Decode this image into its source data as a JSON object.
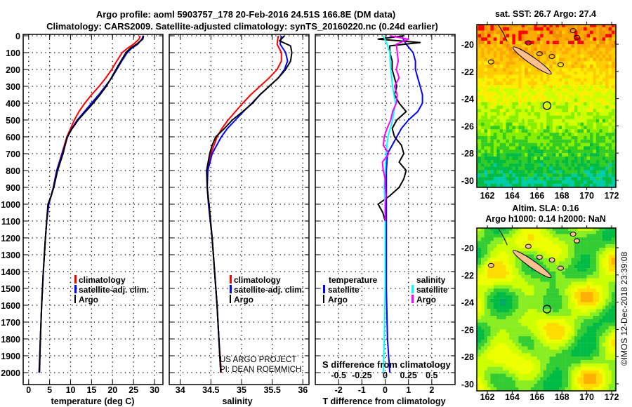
{
  "title": {
    "line1": "Argo profile: aoml 5903757_178 20-Feb-2016 24.51S 166.8E (DM data)",
    "line2": "Climatology: CARS2009. Satellite-adjusted climatology: synTS_20160220.nc (0.24d earlier)"
  },
  "credit": {
    "line1": "US ARGO PROJECT",
    "line2": "PI: DEAN ROEMMICH"
  },
  "watermark": "©IMOS 12-Dec-2018 23:39:08",
  "depth_ticks": [
    0,
    100,
    200,
    300,
    400,
    500,
    600,
    700,
    800,
    900,
    1000,
    1100,
    1200,
    1300,
    1400,
    1500,
    1600,
    1700,
    1800,
    1900,
    2000
  ],
  "chart_data": [
    {
      "type": "line",
      "id": "temperature",
      "xlabel": "temperature (deg C)",
      "ylabel": "depth",
      "xlim": [
        -1.3,
        32
      ],
      "ylim": [
        0,
        2070
      ],
      "xticks": [
        0,
        5,
        10,
        15,
        20,
        25,
        30
      ],
      "grid": true,
      "legend": [
        "climatology",
        "satellite-adj. clim.",
        "Argo"
      ],
      "series": [
        {
          "name": "climatology",
          "color": "#ff0000",
          "depth": [
            0,
            20,
            50,
            75,
            100,
            150,
            200,
            250,
            300,
            350,
            400,
            450,
            500,
            550,
            600,
            700,
            800,
            900,
            1000,
            1100,
            1200,
            1400,
            1600,
            1800,
            2000
          ],
          "values": [
            26.6,
            26.3,
            25,
            23.5,
            22.3,
            21,
            19.8,
            18.4,
            16.8,
            15,
            13.4,
            12,
            10.9,
            10,
            9.1,
            7.9,
            6.7,
            5.9,
            4.8,
            4.3,
            4,
            3.5,
            3.1,
            2.8,
            2.5
          ]
        },
        {
          "name": "satellite-adj. clim.",
          "color": "#0000ff",
          "depth": [
            0,
            20,
            50,
            75,
            100,
            150,
            200,
            250,
            300,
            350,
            400,
            450,
            500,
            550,
            600,
            700,
            800,
            900,
            1000,
            1100,
            1200,
            1400,
            1600,
            1800,
            2000
          ],
          "values": [
            27.3,
            27,
            26,
            24.5,
            23.5,
            22.2,
            21,
            19.8,
            18.3,
            16.7,
            15,
            13.3,
            11.6,
            10.3,
            9.3,
            8,
            6.7,
            5.9,
            4.8,
            4.3,
            4,
            3.5,
            3.1,
            2.8,
            2.5
          ]
        },
        {
          "name": "Argo",
          "color": "#000000",
          "depth": [
            0,
            20,
            50,
            75,
            100,
            150,
            200,
            250,
            300,
            350,
            400,
            450,
            500,
            550,
            600,
            700,
            800,
            900,
            950,
            1000,
            1100,
            1200,
            1400,
            1600,
            1800,
            2000
          ],
          "values": [
            27.4,
            27.2,
            25.7,
            24.2,
            23.2,
            22,
            20.8,
            19.7,
            18.5,
            17,
            15.4,
            13.6,
            11.8,
            10.4,
            9.2,
            8.2,
            6.9,
            6,
            5.4,
            4.6,
            4.3,
            4,
            3.5,
            3.1,
            2.8,
            2.6
          ]
        }
      ]
    },
    {
      "type": "line",
      "id": "salinity",
      "xlabel": "salinity",
      "ylabel": "depth",
      "xlim": [
        33.82,
        36.1
      ],
      "ylim": [
        0,
        2070
      ],
      "xticks": [
        34,
        34.5,
        35,
        35.5,
        36
      ],
      "grid": true,
      "legend": [
        "climatology",
        "satellite-adj. clim.",
        "Argo"
      ],
      "series": [
        {
          "name": "climatology",
          "color": "#ff0000",
          "depth": [
            0,
            50,
            100,
            150,
            200,
            250,
            300,
            350,
            400,
            450,
            500,
            550,
            600,
            700,
            800,
            900,
            1000,
            1200,
            1400,
            1600,
            1800,
            2000
          ],
          "values": [
            35.6,
            35.58,
            35.65,
            35.65,
            35.58,
            35.45,
            35.3,
            35.15,
            35.02,
            34.9,
            34.78,
            34.68,
            34.6,
            34.5,
            34.44,
            34.44,
            34.46,
            34.52,
            34.56,
            34.6,
            34.63,
            34.67
          ]
        },
        {
          "name": "satellite-adj. clim.",
          "color": "#0000ff",
          "depth": [
            0,
            50,
            100,
            150,
            200,
            250,
            300,
            350,
            400,
            450,
            500,
            550,
            600,
            700,
            800,
            900,
            1000,
            1200,
            1400,
            1600,
            1800,
            2000
          ],
          "values": [
            35.65,
            35.63,
            35.72,
            35.75,
            35.7,
            35.6,
            35.45,
            35.3,
            35.17,
            35.03,
            34.9,
            34.77,
            34.67,
            34.52,
            34.45,
            34.44,
            34.46,
            34.52,
            34.56,
            34.6,
            34.63,
            34.66
          ]
        },
        {
          "name": "Argo",
          "color": "#000000",
          "depth": [
            0,
            30,
            60,
            100,
            150,
            200,
            250,
            300,
            350,
            400,
            450,
            500,
            550,
            600,
            650,
            700,
            800,
            900,
            1000,
            1200,
            1400,
            1600,
            1800,
            2000
          ],
          "values": [
            35.7,
            35.62,
            35.8,
            35.82,
            35.8,
            35.72,
            35.6,
            35.45,
            35.3,
            35.18,
            35.02,
            34.85,
            34.72,
            34.58,
            34.52,
            34.48,
            34.43,
            34.44,
            34.47,
            34.52,
            34.56,
            34.6,
            34.63,
            34.66
          ]
        }
      ]
    },
    {
      "type": "line",
      "id": "difference",
      "xlabel": "T difference from climatology",
      "x2label": "S difference from climatology",
      "ylabel": "depth",
      "xlim": [
        -3,
        3
      ],
      "x2lim": [
        -0.75,
        0.75
      ],
      "ylim": [
        0,
        2070
      ],
      "xticks": [
        -2,
        -1,
        0,
        1,
        2
      ],
      "x2ticks": [
        -0.5,
        -0.25,
        0,
        0.25,
        0.5
      ],
      "x2ticklabels": [
        "-0.5",
        "-0.25",
        "0",
        "0.25",
        "0.5"
      ],
      "grid": true,
      "legend_headers": {
        "temperature": "temperature",
        "salinity": "salinity"
      },
      "legend": [
        "satellite",
        "Argo",
        "satellite",
        "Argo"
      ],
      "series": [
        {
          "name": "T satellite",
          "axis": "T",
          "color": "#0000ff",
          "depth": [
            0,
            50,
            100,
            150,
            200,
            250,
            300,
            350,
            400,
            450,
            500,
            550,
            600,
            650,
            700,
            800,
            900,
            1000,
            1200,
            1500,
            1800,
            2000
          ],
          "values": [
            0.7,
            0.9,
            1.2,
            1.3,
            1.3,
            1.4,
            1.5,
            1.6,
            1.6,
            1.4,
            1.0,
            0.7,
            0.5,
            0.3,
            0.1,
            0.05,
            0.05,
            0.05,
            0.05,
            0.05,
            0.1,
            0.2
          ]
        },
        {
          "name": "T Argo",
          "axis": "T",
          "color": "#000000",
          "depth": [
            0,
            20,
            40,
            60,
            100,
            150,
            200,
            250,
            300,
            350,
            400,
            450,
            500,
            550,
            600,
            650,
            700,
            750,
            800,
            850,
            900,
            950,
            1000,
            1050,
            1100
          ],
          "values": [
            0.8,
            -0.3,
            1.5,
            0.2,
            0.2,
            0.3,
            0.3,
            0.4,
            0.5,
            0.4,
            0.6,
            0.9,
            0.5,
            0.3,
            0.4,
            0.7,
            0.8,
            0.6,
            0.9,
            0.8,
            0.6,
            0.2,
            -0.3,
            -0.1,
            0
          ]
        },
        {
          "name": "S satellite",
          "axis": "S",
          "color": "#00ffff",
          "depth": [
            0,
            50,
            100,
            200,
            300,
            400,
            500,
            600,
            700,
            800,
            900,
            1000,
            1200,
            1500,
            1800,
            2000
          ],
          "values": [
            -0.02,
            0.02,
            0.05,
            0.06,
            0.08,
            0.11,
            0.08,
            0.03,
            0.01,
            0,
            -0.01,
            0,
            0,
            0,
            -0.01,
            -0.02
          ]
        },
        {
          "name": "S Argo",
          "axis": "S",
          "color": "#ff00ff",
          "depth": [
            0,
            20,
            50,
            100,
            150,
            200,
            250,
            300,
            350,
            400,
            450,
            500,
            550,
            600,
            650,
            700,
            750,
            800,
            850,
            900,
            950,
            1000,
            1100
          ],
          "values": [
            0.05,
            0.25,
            0.12,
            0.13,
            0.14,
            0.12,
            0.15,
            0.1,
            0.13,
            0.12,
            0.08,
            0.06,
            0.02,
            -0.01,
            -0.02,
            0.04,
            -0.03,
            -0.02,
            0,
            0,
            0.01,
            0,
            0
          ]
        }
      ]
    },
    {
      "type": "heatmap",
      "id": "sst-map",
      "title": "sat. SST: 26.7 Argo: 27.4",
      "xticks": [
        162,
        164,
        166,
        168,
        170,
        172
      ],
      "yticks": [
        -20,
        -22,
        -24,
        -26,
        -28,
        -30
      ],
      "xlim": [
        161.15,
        172.4
      ],
      "ylim": [
        -30.6,
        -18.55
      ],
      "argo_position": {
        "lon": 166.8,
        "lat": -24.51
      }
    },
    {
      "type": "heatmap",
      "id": "sla-map",
      "title": "Altim. SLA: 0.16",
      "subtitle": "Argo h1000: 0.14 h2000: NaN",
      "xticks": [
        162,
        164,
        166,
        168,
        170,
        172
      ],
      "yticks": [
        -20,
        -22,
        -24,
        -26,
        -28,
        -30
      ],
      "xlim": [
        161.15,
        172.4
      ],
      "ylim": [
        -30.5,
        -18.55
      ],
      "argo_position": {
        "lon": 166.8,
        "lat": -24.51
      }
    }
  ]
}
